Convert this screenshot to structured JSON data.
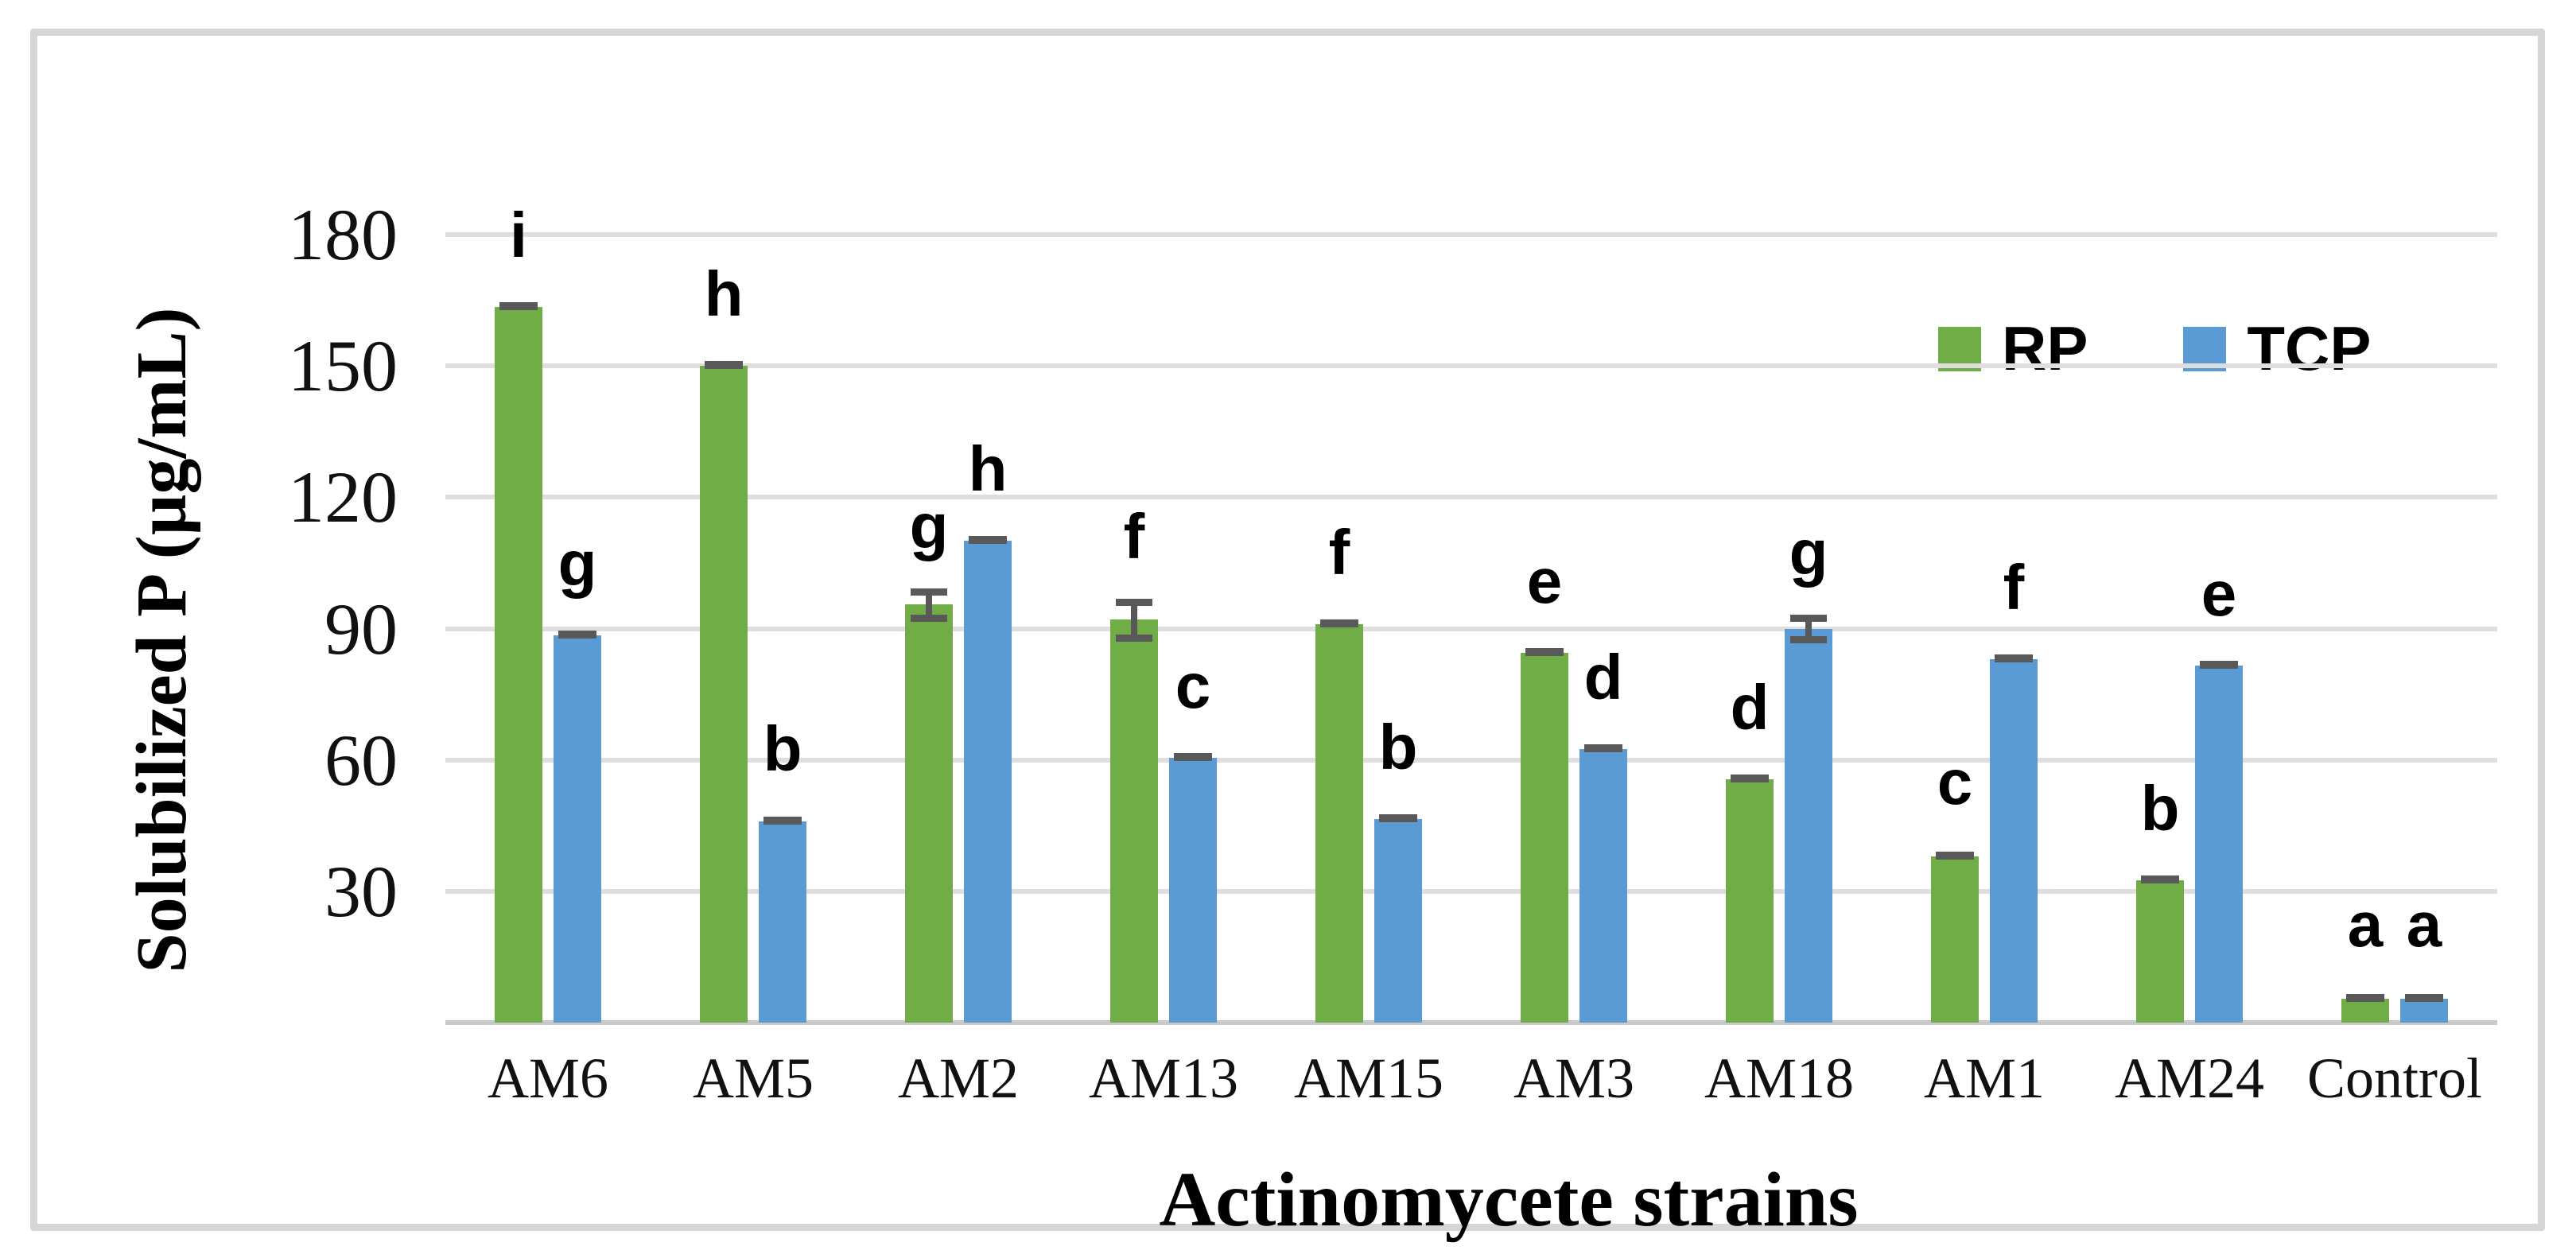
{
  "figure": {
    "background_color": "#ffffff",
    "border_color": "#d6d6d6"
  },
  "chart_data": {
    "type": "bar",
    "title": "",
    "xlabel": "Actinomycete strains",
    "ylabel": "Solubilized P (µg/mL)",
    "categories": [
      "AM6",
      "AM5",
      "AM2",
      "AM13",
      "AM15",
      "AM3",
      "AM18",
      "AM1",
      "AM24",
      "Control"
    ],
    "series": [
      {
        "name": "RP",
        "color": "#70ad47",
        "values": [
          163.5,
          150,
          95.5,
          92,
          91,
          84.5,
          55.5,
          38,
          32.5,
          5.5
        ],
        "errors": [
          1.5,
          1.5,
          3,
          4,
          1.5,
          1.5,
          1.5,
          2,
          1.5,
          2
        ],
        "sig_letters": [
          "i",
          "h",
          "g",
          "f",
          "f",
          "e",
          "d",
          "c",
          "b",
          "a"
        ]
      },
      {
        "name": "TCP",
        "color": "#5b9bd5",
        "values": [
          88.5,
          46,
          110,
          60.5,
          46.5,
          62.5,
          90,
          83,
          81.5,
          5.5
        ],
        "errors": [
          1.5,
          1.5,
          1.5,
          1.5,
          1.5,
          1.5,
          2.5,
          1.5,
          1.5,
          2
        ],
        "sig_letters": [
          "g",
          "b",
          "h",
          "c",
          "b",
          "d",
          "g",
          "f",
          "e",
          "a"
        ]
      }
    ],
    "yticks": [
      30,
      60,
      90,
      120,
      150,
      180
    ],
    "ylim": [
      0,
      180
    ],
    "grid": true,
    "gridline_color": "#dedede",
    "axis_line_color": "#c9c9c9",
    "error_bar_color": "#595959",
    "legend_position": "top-right-inside"
  }
}
